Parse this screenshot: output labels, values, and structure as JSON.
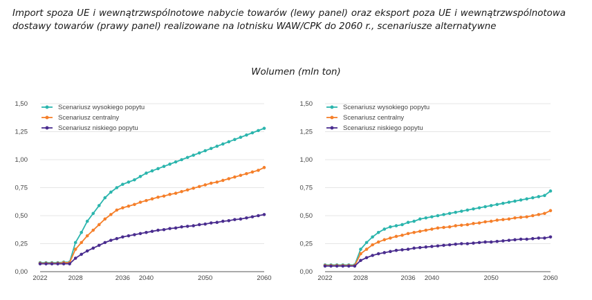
{
  "caption": "Import spoza UE i wewnątrzwspólnotowe nabycie towarów (lewy panel) oraz eksport poza UE i wewnątrzwspólnotowa dostawy towarów (prawy panel) realizowane na lotnisku WAW/CPK do 2060 r., scenariusze alternatywne",
  "subtitle": "Wolumen (mln ton)",
  "colors": {
    "high": "#2bb5ad",
    "central": "#f57f2a",
    "low": "#4a2d8f",
    "grid": "#dcdcdc",
    "axis": "#555555"
  },
  "chart_data": [
    {
      "type": "line",
      "panel": "left",
      "x": [
        2022,
        2023,
        2024,
        2025,
        2026,
        2027,
        2028,
        2029,
        2030,
        2031,
        2032,
        2033,
        2034,
        2035,
        2036,
        2037,
        2038,
        2039,
        2040,
        2041,
        2042,
        2043,
        2044,
        2045,
        2046,
        2047,
        2048,
        2049,
        2050,
        2051,
        2052,
        2053,
        2054,
        2055,
        2056,
        2057,
        2058,
        2059,
        2060
      ],
      "xticks": [
        "2022",
        "2028",
        "2036",
        "2040",
        "2050",
        "2060"
      ],
      "yticks": [
        "0,00",
        "0,25",
        "0,50",
        "0,75",
        "1,00",
        "1,25",
        "1,50"
      ],
      "ylim": [
        0,
        1.5
      ],
      "legend_position": "top-left",
      "series": [
        {
          "name": "Scenariusz wysokiego popytu",
          "key": "high",
          "values": [
            0.08,
            0.08,
            0.08,
            0.08,
            0.085,
            0.085,
            0.26,
            0.35,
            0.45,
            0.52,
            0.59,
            0.66,
            0.71,
            0.75,
            0.78,
            0.8,
            0.82,
            0.85,
            0.88,
            0.9,
            0.92,
            0.94,
            0.96,
            0.98,
            1.0,
            1.02,
            1.04,
            1.06,
            1.08,
            1.1,
            1.12,
            1.14,
            1.16,
            1.18,
            1.2,
            1.22,
            1.24,
            1.26,
            1.28
          ]
        },
        {
          "name": "Scenariusz centralny",
          "key": "central",
          "values": [
            0.075,
            0.075,
            0.075,
            0.075,
            0.08,
            0.08,
            0.2,
            0.26,
            0.32,
            0.37,
            0.42,
            0.47,
            0.51,
            0.55,
            0.57,
            0.585,
            0.6,
            0.62,
            0.635,
            0.65,
            0.665,
            0.675,
            0.69,
            0.7,
            0.715,
            0.73,
            0.745,
            0.76,
            0.775,
            0.79,
            0.8,
            0.815,
            0.83,
            0.845,
            0.86,
            0.875,
            0.89,
            0.905,
            0.93
          ]
        },
        {
          "name": "Scenariusz niskiego popytu",
          "key": "low",
          "values": [
            0.07,
            0.07,
            0.07,
            0.07,
            0.07,
            0.07,
            0.12,
            0.155,
            0.185,
            0.21,
            0.235,
            0.26,
            0.28,
            0.295,
            0.31,
            0.32,
            0.33,
            0.34,
            0.35,
            0.36,
            0.37,
            0.375,
            0.385,
            0.39,
            0.4,
            0.405,
            0.41,
            0.42,
            0.425,
            0.435,
            0.44,
            0.45,
            0.455,
            0.465,
            0.47,
            0.48,
            0.49,
            0.5,
            0.51
          ]
        }
      ]
    },
    {
      "type": "line",
      "panel": "right",
      "x": [
        2022,
        2023,
        2024,
        2025,
        2026,
        2027,
        2028,
        2029,
        2030,
        2031,
        2032,
        2033,
        2034,
        2035,
        2036,
        2037,
        2038,
        2039,
        2040,
        2041,
        2042,
        2043,
        2044,
        2045,
        2046,
        2047,
        2048,
        2049,
        2050,
        2051,
        2052,
        2053,
        2054,
        2055,
        2056,
        2057,
        2058,
        2059,
        2060
      ],
      "xticks": [
        "2022",
        "2028",
        "2036",
        "2040",
        "2050",
        "2060"
      ],
      "yticks": [
        "0,00",
        "0,25",
        "0,50",
        "0,75",
        "1,00",
        "1,25",
        "1,50"
      ],
      "ylim": [
        0,
        1.5
      ],
      "legend_position": "top-left",
      "series": [
        {
          "name": "Scenariusz wysokiego popytu",
          "key": "high",
          "values": [
            0.06,
            0.06,
            0.06,
            0.06,
            0.06,
            0.06,
            0.2,
            0.26,
            0.31,
            0.35,
            0.38,
            0.4,
            0.41,
            0.42,
            0.44,
            0.45,
            0.47,
            0.48,
            0.49,
            0.5,
            0.51,
            0.52,
            0.53,
            0.54,
            0.55,
            0.56,
            0.57,
            0.58,
            0.59,
            0.6,
            0.61,
            0.62,
            0.63,
            0.64,
            0.65,
            0.66,
            0.67,
            0.68,
            0.72
          ]
        },
        {
          "name": "Scenariusz centralny",
          "key": "central",
          "values": [
            0.055,
            0.055,
            0.055,
            0.055,
            0.055,
            0.055,
            0.16,
            0.2,
            0.24,
            0.265,
            0.285,
            0.3,
            0.315,
            0.325,
            0.34,
            0.35,
            0.36,
            0.37,
            0.38,
            0.39,
            0.395,
            0.4,
            0.41,
            0.415,
            0.42,
            0.43,
            0.435,
            0.445,
            0.45,
            0.46,
            0.465,
            0.47,
            0.48,
            0.485,
            0.49,
            0.5,
            0.51,
            0.52,
            0.545
          ]
        },
        {
          "name": "Scenariusz niskiego popytu",
          "key": "low",
          "values": [
            0.05,
            0.05,
            0.05,
            0.05,
            0.05,
            0.05,
            0.1,
            0.125,
            0.145,
            0.16,
            0.17,
            0.18,
            0.19,
            0.195,
            0.2,
            0.21,
            0.215,
            0.22,
            0.225,
            0.23,
            0.235,
            0.24,
            0.245,
            0.25,
            0.25,
            0.255,
            0.26,
            0.265,
            0.265,
            0.27,
            0.275,
            0.28,
            0.285,
            0.29,
            0.29,
            0.295,
            0.3,
            0.3,
            0.31
          ]
        }
      ]
    }
  ]
}
